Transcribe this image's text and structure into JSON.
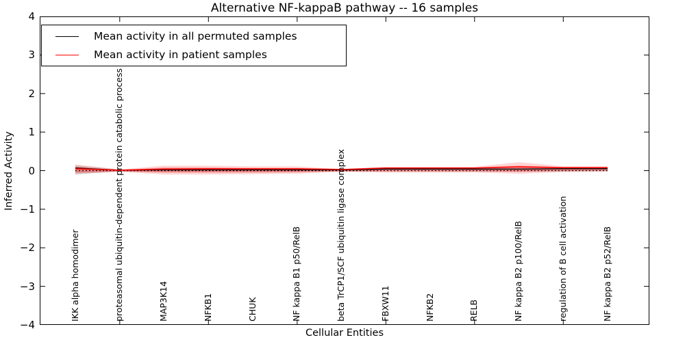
{
  "figure": {
    "title": "Alternative NF-kappaB pathway -- 16 samples",
    "xlabel": "Cellular Entities",
    "ylabel": "Inferred Activity"
  },
  "chart_data": {
    "type": "line",
    "title": "Alternative NF-kappaB pathway -- 16 samples",
    "xlabel": "Cellular Entities",
    "ylabel": "Inferred Activity",
    "grid": false,
    "legend_position": "upper left",
    "legend": [
      {
        "label": "Mean activity in all permuted samples",
        "color": "#000000"
      },
      {
        "label": "Mean activity in patient samples",
        "color": "#ff0000"
      }
    ],
    "categories": [
      "IKK alpha homodimer",
      "proteasomal ubiquitin-dependent protein catabolic process",
      "MAP3K14",
      "NFKB1",
      "CHUK",
      "NF kappa B1 p50/RelB",
      "beta TrCP1/SCF ubiquitin ligase complex",
      "FBXW11",
      "NFKB2",
      "RELB",
      "NF kappa B2 p100/RelB",
      "regulation of B cell activation",
      "NF kappa B2 p52/RelB"
    ],
    "ylim": [
      -4,
      4
    ],
    "yticks": [
      -4,
      -3,
      -2,
      -1,
      0,
      1,
      2,
      3,
      4
    ],
    "xtick_indices": [
      1,
      3,
      5,
      7,
      9,
      11
    ],
    "zero_line": {
      "value": 0,
      "color": "#000000",
      "style": "dotted"
    },
    "series": [
      {
        "name": "Mean activity in all permuted samples",
        "color": "#000000",
        "width": 1.3,
        "values": [
          0.07,
          0.01,
          0.02,
          0.02,
          0.02,
          0.02,
          0.02,
          0.04,
          0.04,
          0.04,
          0.04,
          0.05,
          0.05
        ]
      },
      {
        "name": "Mean activity in patient samples",
        "color": "#ff0000",
        "width": 1.5,
        "values": [
          0.05,
          0.01,
          0.04,
          0.05,
          0.05,
          0.05,
          0.03,
          0.07,
          0.07,
          0.07,
          0.1,
          0.08,
          0.08
        ]
      }
    ],
    "bands": [
      {
        "name": "permuted-std-band",
        "color": "rgba(120,120,120,0.30)",
        "upper": [
          0.14,
          0.03,
          0.07,
          0.07,
          0.06,
          0.06,
          0.04,
          0.07,
          0.07,
          0.07,
          0.07,
          0.08,
          0.08
        ],
        "lower": [
          -0.1,
          -0.02,
          -0.04,
          -0.04,
          -0.04,
          -0.04,
          -0.02,
          -0.02,
          -0.02,
          -0.02,
          -0.02,
          -0.02,
          -0.01
        ]
      },
      {
        "name": "patient-std-band-outer",
        "color": "rgba(255,0,0,0.17)",
        "upper": [
          0.16,
          0.03,
          0.13,
          0.13,
          0.11,
          0.11,
          0.04,
          0.1,
          0.1,
          0.1,
          0.22,
          0.11,
          0.11
        ],
        "lower": [
          -0.08,
          -0.03,
          -0.1,
          -0.1,
          -0.09,
          -0.08,
          -0.03,
          -0.05,
          -0.05,
          -0.05,
          -0.08,
          -0.04,
          -0.03
        ]
      },
      {
        "name": "patient-std-band-inner",
        "color": "rgba(255,0,0,0.28)",
        "upper": [
          0.1,
          0.02,
          0.08,
          0.08,
          0.07,
          0.07,
          0.03,
          0.08,
          0.08,
          0.08,
          0.13,
          0.09,
          0.09
        ],
        "lower": [
          -0.05,
          -0.02,
          -0.05,
          -0.05,
          -0.05,
          -0.04,
          -0.02,
          -0.02,
          -0.02,
          -0.02,
          -0.03,
          -0.01,
          0.0
        ]
      }
    ]
  }
}
